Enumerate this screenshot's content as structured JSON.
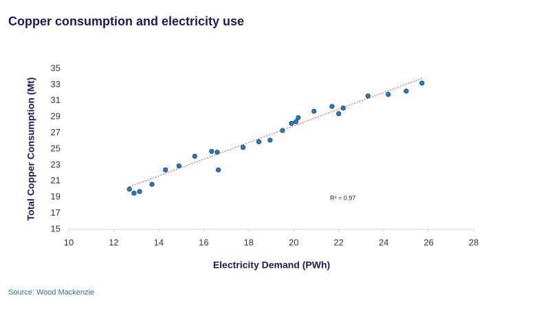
{
  "chart_data": {
    "type": "scatter",
    "title": "Copper consumption and electricity use",
    "x_label": "Electricity Demand (PWh)",
    "y_label": "Total Copper Consumption (Mt)",
    "source": "Source: Wood Mackenzie",
    "annotation": "R² = 0.97",
    "color": "#1f7fc4",
    "x": [
      12.7,
      12.9,
      13.15,
      13.7,
      14.3,
      14.9,
      15.6,
      16.35,
      16.6,
      16.65,
      17.75,
      18.45,
      18.95,
      19.5,
      19.9,
      20.1,
      20.2,
      20.9,
      21.7,
      22.0,
      22.2,
      23.3,
      24.2,
      25.0,
      25.7
    ],
    "values": [
      20.0,
      19.5,
      19.7,
      20.6,
      22.4,
      22.9,
      24.1,
      24.7,
      24.6,
      22.4,
      25.2,
      25.9,
      26.1,
      27.3,
      28.2,
      28.4,
      28.9,
      29.7,
      30.3,
      29.4,
      30.1,
      31.6,
      31.8,
      32.2,
      33.2
    ],
    "trendline": {
      "color": "#e8413c",
      "x": [
        12.7,
        25.7
      ],
      "values": [
        20.3,
        33.8
      ]
    },
    "xlim": [
      10,
      28
    ],
    "xticks": [
      10,
      12,
      14,
      16,
      18,
      20,
      22,
      24,
      26,
      28
    ],
    "ylim": [
      15,
      35
    ],
    "yticks": [
      15,
      17,
      19,
      21,
      23,
      25,
      27,
      29,
      31,
      33,
      35
    ],
    "grid": false
  }
}
